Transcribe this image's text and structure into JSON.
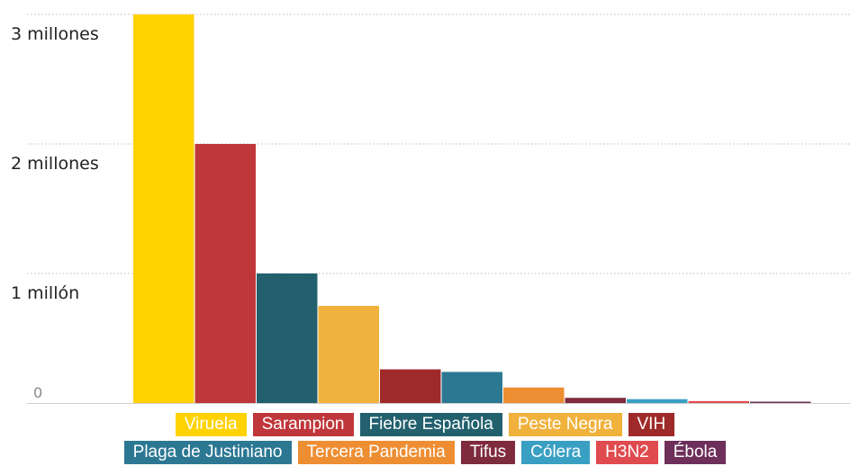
{
  "chart_data": {
    "type": "bar",
    "title": "",
    "xlabel": "",
    "ylabel": "",
    "ylim": [
      0,
      3000000
    ],
    "grid": true,
    "legend_position": "bottom",
    "yticks": [
      {
        "value": 0,
        "label": "0"
      },
      {
        "value": 1000000,
        "label": "1 millón"
      },
      {
        "value": 2000000,
        "label": "2 millones"
      },
      {
        "value": 3000000,
        "label": "3 millones"
      }
    ],
    "categories": [
      "Viruela",
      "Sarampion",
      "Fiebre Española",
      "Peste Negra",
      "VIH",
      "Plaga de Justiniano",
      "Tercera Pandemia",
      "Tifus",
      "Cólera",
      "H3N2",
      "Ébola"
    ],
    "values": [
      3000000,
      2000000,
      1000000,
      750000,
      260000,
      240000,
      120000,
      40000,
      30000,
      15000,
      10000
    ],
    "colors": [
      "#FFD200",
      "#C0373B",
      "#22606E",
      "#F0B23C",
      "#9F2A2A",
      "#2C7893",
      "#EE8E33",
      "#7E2B3C",
      "#3AA0C3",
      "#E04B4F",
      "#6E2F5B"
    ],
    "legend_rows": [
      [
        0,
        1,
        2,
        3,
        4
      ],
      [
        5,
        6,
        7,
        8,
        9,
        10
      ]
    ]
  }
}
